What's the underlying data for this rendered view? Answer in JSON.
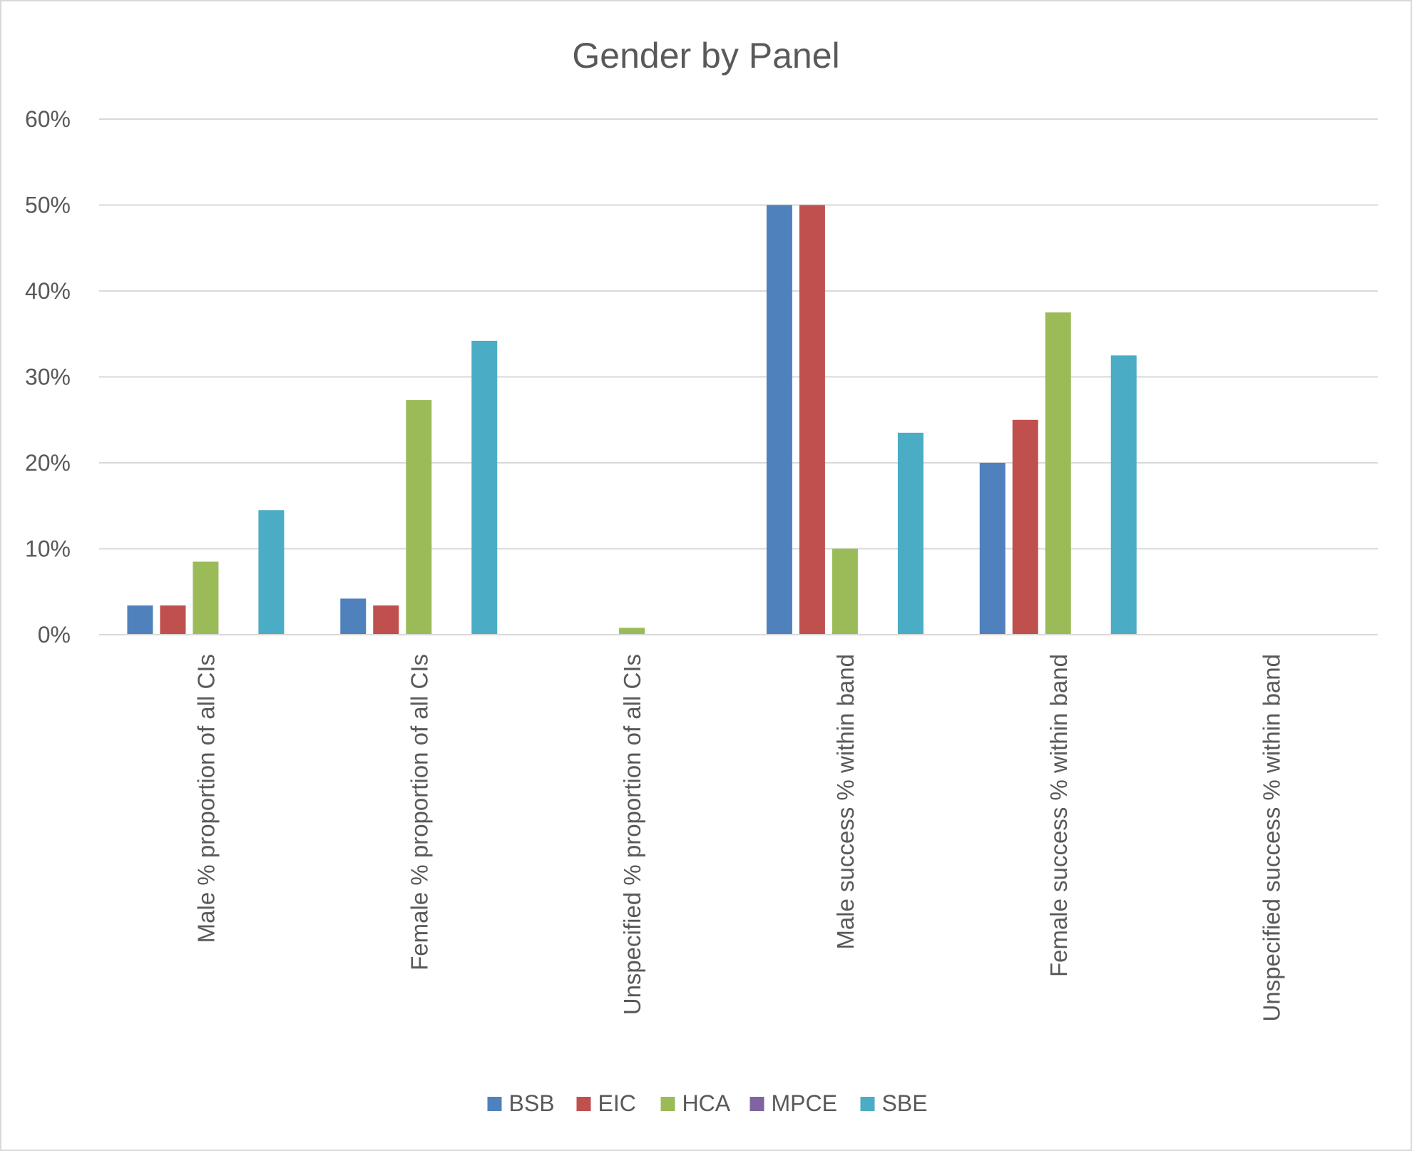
{
  "chart_data": {
    "type": "bar",
    "title": "Gender by Panel",
    "xlabel": "",
    "ylabel": "",
    "ylim": [
      0,
      60
    ],
    "y_ticks": [
      "0%",
      "10%",
      "20%",
      "30%",
      "40%",
      "50%",
      "60%"
    ],
    "y_tick_values": [
      0,
      10,
      20,
      30,
      40,
      50,
      60
    ],
    "grid": true,
    "legend_position": "bottom",
    "categories": [
      "Male % proportion of all CIs",
      "Female % proportion of all CIs",
      "Unspecified % proportion of all CIs",
      "Male success % within band",
      "Female success % within band",
      "Unspecified success % within band"
    ],
    "series": [
      {
        "name": "BSB",
        "color": "#4f81bd",
        "values": [
          3.4,
          4.2,
          0,
          50,
          20,
          0
        ]
      },
      {
        "name": "EIC",
        "color": "#c0504d",
        "values": [
          3.4,
          3.4,
          0,
          50,
          25,
          0
        ]
      },
      {
        "name": "HCA",
        "color": "#9bbb59",
        "values": [
          8.5,
          27.3,
          0.8,
          10,
          37.5,
          0
        ]
      },
      {
        "name": "MPCE",
        "color": "#8064a2",
        "values": [
          0,
          0,
          0,
          0,
          0,
          0
        ]
      },
      {
        "name": "SBE",
        "color": "#4bacc6",
        "values": [
          14.5,
          34.2,
          0,
          23.5,
          32.5,
          0
        ]
      }
    ]
  }
}
